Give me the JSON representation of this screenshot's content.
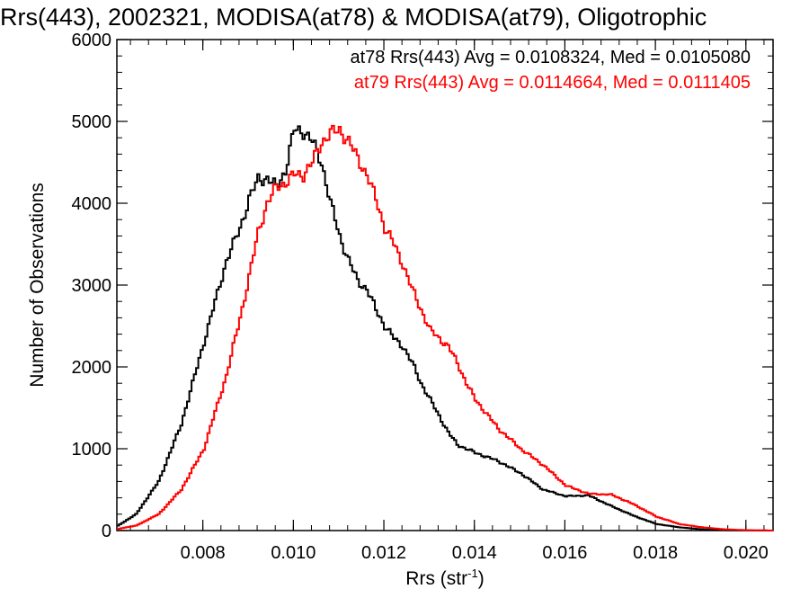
{
  "chart_data": {
    "type": "line",
    "title": "Rrs(443), 2002321, MODISA(at78) & MODISA(at79), Oligotrophic",
    "xlabel": "Rrs (str",
    "xlabel_sup": "-1",
    "xlabel_tail": ")",
    "ylabel": "Number of Observations",
    "xlim": [
      0.0061,
      0.0206
    ],
    "ylim": [
      0,
      6000
    ],
    "x_ticks": [
      "0.008",
      "0.010",
      "0.012",
      "0.014",
      "0.016",
      "0.018",
      "0.020"
    ],
    "y_ticks": [
      "0",
      "1000",
      "2000",
      "3000",
      "4000",
      "5000",
      "6000"
    ],
    "grid": false,
    "legend_placement": "top-right",
    "series": [
      {
        "name": "at78",
        "color": "#000000",
        "stats_text": "at78 Rrs(443) Avg = 0.0108324, Med = 0.0105080",
        "x": [
          0.0061,
          0.0065,
          0.007,
          0.0075,
          0.008,
          0.0085,
          0.0088,
          0.009,
          0.0092,
          0.0094,
          0.0096,
          0.0098,
          0.01,
          0.0102,
          0.0104,
          0.0106,
          0.0108,
          0.011,
          0.0112,
          0.0114,
          0.0116,
          0.0118,
          0.012,
          0.0122,
          0.0124,
          0.0126,
          0.0128,
          0.013,
          0.0132,
          0.0134,
          0.0136,
          0.0138,
          0.014,
          0.0145,
          0.015,
          0.0155,
          0.016,
          0.0165,
          0.017,
          0.0175,
          0.018,
          0.0185,
          0.019,
          0.0195,
          0.02,
          0.0206
        ],
        "y": [
          60,
          200,
          600,
          1300,
          2300,
          3300,
          3700,
          4050,
          4300,
          4300,
          4200,
          4400,
          4900,
          4880,
          4750,
          4500,
          4000,
          3600,
          3300,
          3050,
          2950,
          2700,
          2500,
          2350,
          2250,
          2050,
          1800,
          1600,
          1400,
          1200,
          1050,
          1000,
          950,
          850,
          700,
          500,
          420,
          430,
          300,
          180,
          80,
          40,
          15,
          5,
          2,
          0
        ]
      },
      {
        "name": "at79",
        "color": "#ff0000",
        "stats_text": "at79 Rrs(443) Avg = 0.0114664, Med = 0.0111405",
        "x": [
          0.0061,
          0.0065,
          0.007,
          0.0075,
          0.008,
          0.0085,
          0.0088,
          0.009,
          0.0092,
          0.0094,
          0.0096,
          0.0098,
          0.01,
          0.0102,
          0.0104,
          0.0106,
          0.0108,
          0.011,
          0.0112,
          0.0114,
          0.0116,
          0.0118,
          0.012,
          0.0122,
          0.0124,
          0.0126,
          0.0128,
          0.013,
          0.0132,
          0.0134,
          0.0136,
          0.0138,
          0.014,
          0.0145,
          0.015,
          0.0155,
          0.016,
          0.0165,
          0.017,
          0.0175,
          0.018,
          0.0185,
          0.019,
          0.0195,
          0.02,
          0.0206
        ],
        "y": [
          20,
          60,
          200,
          500,
          1000,
          1900,
          2600,
          3100,
          3650,
          4000,
          4200,
          4250,
          4350,
          4350,
          4500,
          4750,
          4850,
          4900,
          4750,
          4550,
          4350,
          4050,
          3700,
          3500,
          3250,
          2950,
          2700,
          2450,
          2350,
          2250,
          2050,
          1800,
          1600,
          1250,
          1000,
          800,
          550,
          450,
          440,
          320,
          170,
          80,
          40,
          15,
          5,
          0
        ]
      }
    ]
  }
}
